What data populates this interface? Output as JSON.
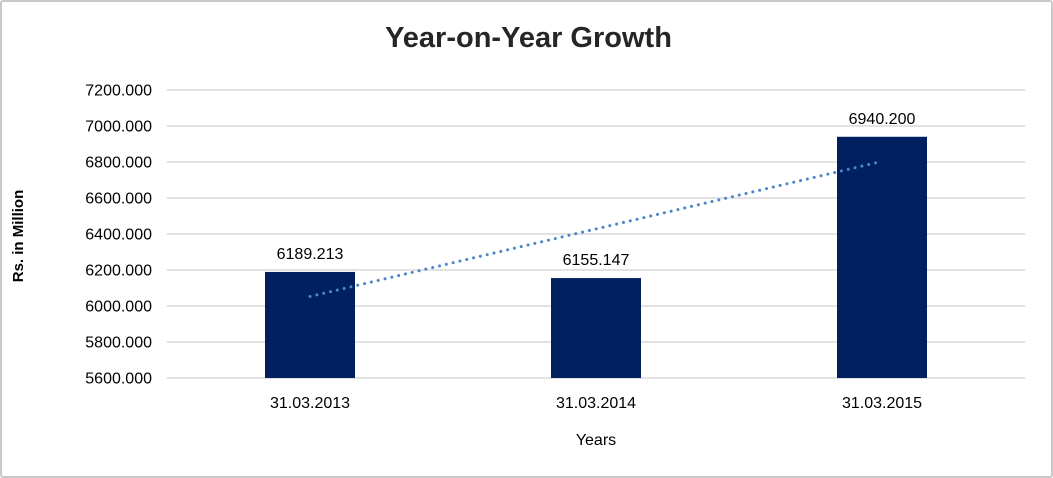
{
  "window": {
    "background_color": "#ffffff",
    "border_color": "#c9c9c9"
  },
  "chart_data": {
    "type": "bar",
    "title": "Year-on-Year Growth",
    "xlabel": "Years",
    "ylabel": "Rs. in Million",
    "categories": [
      "31.03.2013",
      "31.03.2014",
      "31.03.2015"
    ],
    "values": [
      6189.213,
      6155.147,
      6940.2
    ],
    "value_labels": [
      "6189.213",
      "6155.147",
      "6940.200"
    ],
    "ytick_labels": [
      "5600.000",
      "5800.000",
      "6000.000",
      "6200.000",
      "6400.000",
      "6600.000",
      "6800.000",
      "7000.000",
      "7200.000"
    ],
    "yticks": [
      5600,
      5800,
      6000,
      6200,
      6400,
      6600,
      6800,
      7000,
      7200
    ],
    "ylim": [
      5600,
      7200
    ],
    "grid": true,
    "legend_position": "none",
    "bar_color": "#002060",
    "grid_color": "#d9d9d9",
    "tick_text_color": "#000000",
    "title_color": "#262626",
    "trendline": {
      "type": "linear",
      "style": "dotted",
      "color": "#4a86c8"
    }
  }
}
